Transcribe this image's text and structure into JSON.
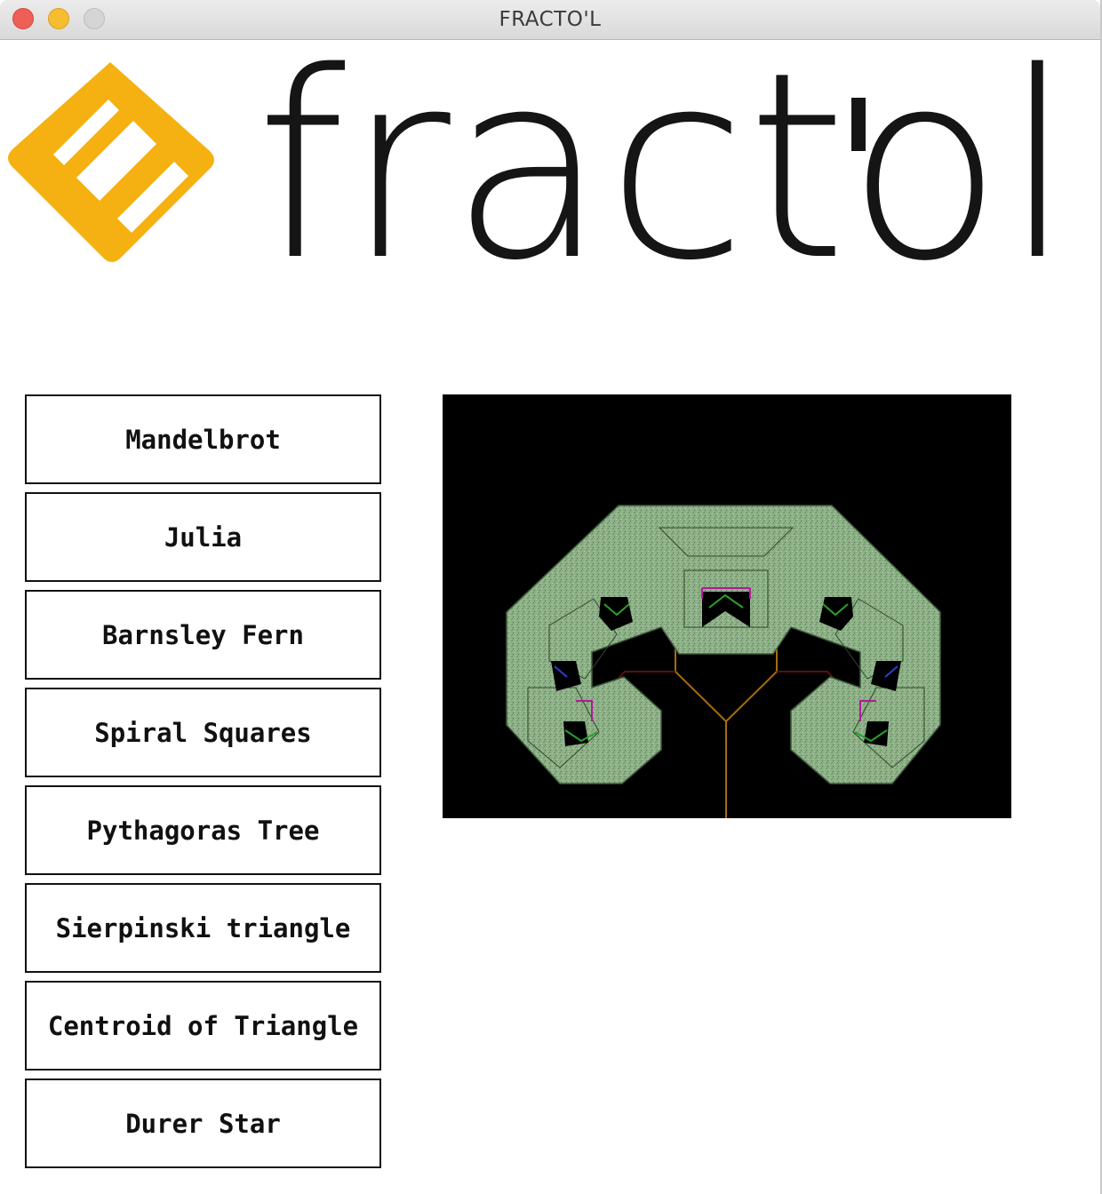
{
  "window": {
    "title": "FRACTO'L"
  },
  "logo": {
    "wordmark": "fractol",
    "accent_color": "#F5B111"
  },
  "buttons": [
    {
      "label": "Mandelbrot"
    },
    {
      "label": "Julia"
    },
    {
      "label": "Barnsley Fern"
    },
    {
      "label": "Spiral Squares"
    },
    {
      "label": "Pythagoras Tree"
    },
    {
      "label": "Sierpinski triangle"
    },
    {
      "label": "Centroid of Triangle"
    },
    {
      "label": "Durer Star"
    }
  ],
  "preview": {
    "icon": "pythagoras-tree-fractal",
    "background": "#000000",
    "foliage_color": "#8DB087"
  }
}
